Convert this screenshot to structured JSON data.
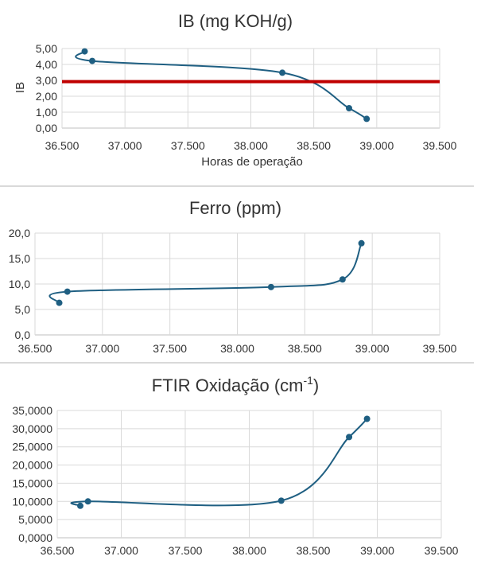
{
  "chart_data": [
    {
      "type": "line",
      "title": "IB (mg KOH/g)",
      "xlabel": "Horas de operação",
      "ylabel": "IB",
      "xlim": [
        36500,
        39500
      ],
      "ylim": [
        0,
        5
      ],
      "x_ticks": [
        "36.500",
        "37.000",
        "37.500",
        "38.000",
        "38.500",
        "39.000",
        "39.500"
      ],
      "y_ticks": [
        "0,00",
        "1,00",
        "2,00",
        "3,00",
        "4,00",
        "5,00"
      ],
      "grid": true,
      "series": [
        {
          "x": [
            36680,
            36740,
            38250,
            38780,
            38920
          ],
          "y": [
            4.82,
            4.22,
            3.48,
            1.25,
            0.58
          ]
        }
      ],
      "reference_line": {
        "y": 2.92,
        "color": "#c00000"
      }
    },
    {
      "type": "line",
      "title": "Ferro (ppm)",
      "xlim": [
        36500,
        39500
      ],
      "ylim": [
        0,
        20
      ],
      "x_ticks": [
        "36.500",
        "37.000",
        "37.500",
        "38.000",
        "38.500",
        "39.000",
        "39.500"
      ],
      "y_ticks": [
        "0,0",
        "5,0",
        "10,0",
        "15,0",
        "20,0"
      ],
      "grid": true,
      "series": [
        {
          "x": [
            36680,
            36740,
            38250,
            38780,
            38920
          ],
          "y": [
            6.3,
            8.5,
            9.4,
            10.9,
            18.0
          ]
        }
      ]
    },
    {
      "type": "line",
      "title": "FTIR Oxidação",
      "title_unit": "(cm",
      "title_sup": "-1",
      "title_close": ")",
      "xlim": [
        36500,
        39500
      ],
      "ylim": [
        0,
        35
      ],
      "x_ticks": [
        "36.500",
        "37.000",
        "37.500",
        "38.000",
        "38.500",
        "39.000",
        "39.500"
      ],
      "y_ticks": [
        "0,0000",
        "5,0000",
        "10,0000",
        "15,0000",
        "20,0000",
        "25,0000",
        "30,0000",
        "35,0000"
      ],
      "grid": true,
      "series": [
        {
          "x": [
            36680,
            36740,
            38250,
            38780,
            38920
          ],
          "y": [
            8.8,
            10.0,
            10.2,
            27.7,
            32.7
          ]
        }
      ]
    }
  ],
  "colors": {
    "series": "#1f5f82",
    "reference": "#c00000",
    "grid": "#d9d9d9",
    "text": "#333333"
  }
}
